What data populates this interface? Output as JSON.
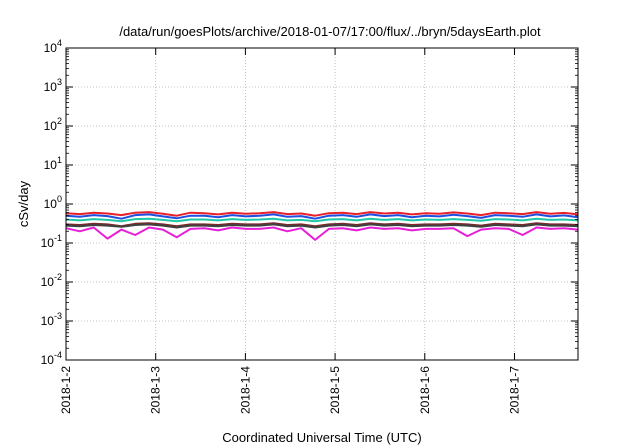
{
  "chart_data": {
    "type": "line",
    "title": "/data/run/goesPlots/archive/2018-01-07/17:00/flux/../bryn/5daysEarth.plot",
    "xlabel": "Coordinated Universal Time (UTC)",
    "ylabel": "cSv/day",
    "yscale": "log",
    "ylim": [
      0.0001,
      10000
    ],
    "y_ticks": [
      {
        "value": 0.0001,
        "base": "10",
        "exp": "-4"
      },
      {
        "value": 0.001,
        "base": "10",
        "exp": "-3"
      },
      {
        "value": 0.01,
        "base": "10",
        "exp": "-2"
      },
      {
        "value": 0.1,
        "base": "10",
        "exp": "-1"
      },
      {
        "value": 1,
        "base": "10",
        "exp": "0"
      },
      {
        "value": 10,
        "base": "10",
        "exp": "1"
      },
      {
        "value": 100,
        "base": "10",
        "exp": "2"
      },
      {
        "value": 1000,
        "base": "10",
        "exp": "3"
      },
      {
        "value": 10000,
        "base": "10",
        "exp": "4"
      }
    ],
    "xlim": [
      "2018-01-02",
      "2018-01-07T17:00"
    ],
    "x_ticks": [
      "2018-1-2",
      "2018-1-3",
      "2018-1-4",
      "2018-1-5",
      "2018-1-6",
      "2018-1-7"
    ],
    "grid": true,
    "legend": "none",
    "series": [
      {
        "color": "#e8202a",
        "values": [
          0.58,
          0.55,
          0.6,
          0.57,
          0.52,
          0.6,
          0.62,
          0.56,
          0.5,
          0.6,
          0.58,
          0.54,
          0.6,
          0.56,
          0.58,
          0.62,
          0.55,
          0.57,
          0.5,
          0.58,
          0.6,
          0.55,
          0.62,
          0.57,
          0.6,
          0.54,
          0.58,
          0.56,
          0.61,
          0.57,
          0.52,
          0.6,
          0.58,
          0.55,
          0.62,
          0.56,
          0.59,
          0.54
        ]
      },
      {
        "color": "#1f4fe0",
        "values": [
          0.5,
          0.47,
          0.52,
          0.49,
          0.42,
          0.52,
          0.54,
          0.48,
          0.43,
          0.5,
          0.5,
          0.46,
          0.52,
          0.48,
          0.5,
          0.54,
          0.47,
          0.49,
          0.42,
          0.5,
          0.52,
          0.47,
          0.54,
          0.49,
          0.52,
          0.46,
          0.5,
          0.48,
          0.53,
          0.49,
          0.44,
          0.52,
          0.5,
          0.47,
          0.54,
          0.48,
          0.51,
          0.46
        ]
      },
      {
        "color": "#20c8a8",
        "values": [
          0.4,
          0.38,
          0.41,
          0.39,
          0.36,
          0.41,
          0.42,
          0.39,
          0.36,
          0.4,
          0.4,
          0.38,
          0.41,
          0.39,
          0.4,
          0.42,
          0.38,
          0.39,
          0.36,
          0.4,
          0.41,
          0.38,
          0.42,
          0.39,
          0.41,
          0.38,
          0.4,
          0.39,
          0.41,
          0.39,
          0.37,
          0.41,
          0.4,
          0.38,
          0.42,
          0.39,
          0.4,
          0.38
        ]
      },
      {
        "color": "#7a2a2a",
        "values": [
          0.3,
          0.29,
          0.31,
          0.3,
          0.27,
          0.31,
          0.32,
          0.3,
          0.27,
          0.3,
          0.3,
          0.29,
          0.31,
          0.3,
          0.3,
          0.32,
          0.29,
          0.3,
          0.27,
          0.3,
          0.31,
          0.29,
          0.32,
          0.3,
          0.31,
          0.29,
          0.3,
          0.3,
          0.31,
          0.3,
          0.28,
          0.31,
          0.3,
          0.29,
          0.32,
          0.3,
          0.3,
          0.29
        ]
      },
      {
        "color": "#404040",
        "values": [
          0.28,
          0.27,
          0.29,
          0.28,
          0.26,
          0.29,
          0.3,
          0.28,
          0.25,
          0.28,
          0.28,
          0.27,
          0.29,
          0.28,
          0.28,
          0.3,
          0.27,
          0.28,
          0.25,
          0.28,
          0.29,
          0.27,
          0.3,
          0.28,
          0.29,
          0.27,
          0.28,
          0.28,
          0.29,
          0.28,
          0.26,
          0.29,
          0.28,
          0.27,
          0.3,
          0.28,
          0.28,
          0.27
        ]
      },
      {
        "color": "#e81ed8",
        "values": [
          0.24,
          0.2,
          0.25,
          0.13,
          0.22,
          0.16,
          0.25,
          0.22,
          0.14,
          0.23,
          0.24,
          0.21,
          0.25,
          0.23,
          0.23,
          0.25,
          0.2,
          0.24,
          0.12,
          0.23,
          0.24,
          0.21,
          0.25,
          0.23,
          0.24,
          0.21,
          0.23,
          0.23,
          0.24,
          0.15,
          0.22,
          0.24,
          0.23,
          0.16,
          0.25,
          0.23,
          0.24,
          0.22
        ]
      }
    ]
  }
}
